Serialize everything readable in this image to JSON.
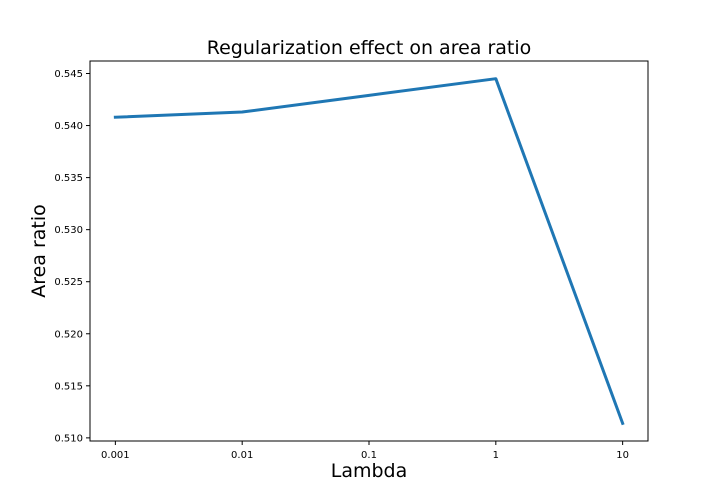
{
  "chart_data": {
    "type": "line",
    "title": "Regularization effect on area ratio",
    "xlabel": "Lambda",
    "ylabel": "Area ratio",
    "categories": [
      "0.001",
      "0.01",
      "0.1",
      "1",
      "10"
    ],
    "series": [
      {
        "values": [
          0.5408,
          0.5413,
          0.5429,
          0.5445,
          0.5114
        ],
        "color": "#1f77b4"
      }
    ],
    "ylim": [
      0.5097,
      0.5462
    ],
    "yticks": [
      0.51,
      0.515,
      0.52,
      0.525,
      0.53,
      0.535,
      0.54,
      0.545
    ],
    "ytick_labels": [
      "0.510",
      "0.515",
      "0.520",
      "0.525",
      "0.530",
      "0.535",
      "0.540",
      "0.545"
    ],
    "grid": false,
    "legend": "none"
  }
}
